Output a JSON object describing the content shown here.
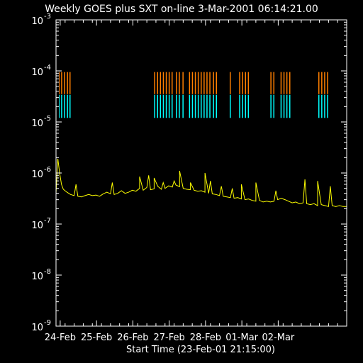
{
  "chart_data": {
    "type": "line",
    "title": "Weekly GOES plus SXT on-line  3-Mar-2001 06:14:21.00",
    "xlabel": "Start Time (23-Feb-01 21:15:00)",
    "ylabel": "",
    "y_scale": "log",
    "ylim": [
      1e-09,
      0.001
    ],
    "xlim_days": [
      0,
      8
    ],
    "background": "#000000",
    "axis_color": "#ffffff",
    "x_ticks": [
      {
        "day": 0.115,
        "label": "24-Feb"
      },
      {
        "day": 1.115,
        "label": "25-Feb"
      },
      {
        "day": 2.115,
        "label": "26-Feb"
      },
      {
        "day": 3.115,
        "label": "27-Feb"
      },
      {
        "day": 4.115,
        "label": "28-Feb"
      },
      {
        "day": 5.115,
        "label": "01-Mar"
      },
      {
        "day": 6.115,
        "label": "02-Mar"
      }
    ],
    "y_ticks": [
      {
        "value": 1e-09,
        "base": "10",
        "exp": "-9"
      },
      {
        "value": 1e-08,
        "base": "10",
        "exp": "-8"
      },
      {
        "value": 1e-07,
        "base": "10",
        "exp": "-7"
      },
      {
        "value": 1e-06,
        "base": "10",
        "exp": "-6"
      },
      {
        "value": 1e-05,
        "base": "10",
        "exp": "-5"
      },
      {
        "value": 0.0001,
        "base": "10",
        "exp": "-4"
      },
      {
        "value": 0.001,
        "base": "10",
        "exp": "-3"
      }
    ],
    "series": [
      {
        "color": "#ffff00",
        "points": [
          [
            0.0,
            4e-07
          ],
          [
            0.05,
            1.9e-06
          ],
          [
            0.1,
            1e-06
          ],
          [
            0.15,
            6e-07
          ],
          [
            0.2,
            4.8e-07
          ],
          [
            0.3,
            4.2e-07
          ],
          [
            0.4,
            3.8e-07
          ],
          [
            0.5,
            3.6e-07
          ],
          [
            0.6,
            3.5e-07
          ],
          [
            0.7,
            3.4e-07
          ],
          [
            0.8,
            3.6e-07
          ],
          [
            0.9,
            3.8e-07
          ],
          [
            1.0,
            3.6e-07
          ],
          [
            1.1,
            3.7e-07
          ],
          [
            1.2,
            3.5e-07
          ],
          [
            1.3,
            3.9e-07
          ],
          [
            1.4,
            4.2e-07
          ],
          [
            1.5,
            3.9e-07
          ],
          [
            1.6,
            3.8e-07
          ],
          [
            1.7,
            4e-07
          ],
          [
            1.8,
            4.5e-07
          ],
          [
            1.9,
            4e-07
          ],
          [
            2.0,
            4.2e-07
          ],
          [
            2.1,
            4.6e-07
          ],
          [
            2.2,
            4.4e-07
          ],
          [
            2.3,
            5e-07
          ],
          [
            2.4,
            4.6e-07
          ],
          [
            2.5,
            5.2e-07
          ],
          [
            2.6,
            4.7e-07
          ],
          [
            2.7,
            4.9e-07
          ],
          [
            2.8,
            5.5e-07
          ],
          [
            2.9,
            4.8e-07
          ],
          [
            3.0,
            5e-07
          ],
          [
            3.1,
            5.6e-07
          ],
          [
            3.2,
            5.3e-07
          ],
          [
            3.3,
            5.8e-07
          ],
          [
            3.4,
            5.4e-07
          ],
          [
            3.5,
            5e-07
          ],
          [
            3.6,
            4.8e-07
          ],
          [
            3.7,
            4.7e-07
          ],
          [
            3.8,
            4.6e-07
          ],
          [
            3.9,
            4.4e-07
          ],
          [
            4.0,
            4.5e-07
          ],
          [
            4.1,
            4.2e-07
          ],
          [
            4.2,
            4e-07
          ],
          [
            4.3,
            3.9e-07
          ],
          [
            4.4,
            3.8e-07
          ],
          [
            4.5,
            3.6e-07
          ],
          [
            4.6,
            3.5e-07
          ],
          [
            4.7,
            3.4e-07
          ],
          [
            4.8,
            3.3e-07
          ],
          [
            4.9,
            3.2e-07
          ],
          [
            5.0,
            3.3e-07
          ],
          [
            5.1,
            3.1e-07
          ],
          [
            5.2,
            3e-07
          ],
          [
            5.3,
            3.1e-07
          ],
          [
            5.4,
            2.9e-07
          ],
          [
            5.5,
            2.8e-07
          ],
          [
            5.6,
            2.9e-07
          ],
          [
            5.7,
            2.7e-07
          ],
          [
            5.8,
            2.8e-07
          ],
          [
            5.9,
            2.7e-07
          ],
          [
            6.0,
            2.8e-07
          ],
          [
            6.1,
            3e-07
          ],
          [
            6.2,
            3.2e-07
          ],
          [
            6.3,
            3e-07
          ],
          [
            6.4,
            2.8e-07
          ],
          [
            6.5,
            2.6e-07
          ],
          [
            6.6,
            2.7e-07
          ],
          [
            6.7,
            2.5e-07
          ],
          [
            6.8,
            2.6e-07
          ],
          [
            6.9,
            2.5e-07
          ],
          [
            7.0,
            2.4e-07
          ],
          [
            7.1,
            2.5e-07
          ],
          [
            7.2,
            2.3e-07
          ],
          [
            7.3,
            2.4e-07
          ],
          [
            7.4,
            2.3e-07
          ],
          [
            7.5,
            2.2e-07
          ],
          [
            7.6,
            2.3e-07
          ],
          [
            7.7,
            2.2e-07
          ],
          [
            7.8,
            2.3e-07
          ],
          [
            7.9,
            2.2e-07
          ],
          [
            8.0,
            2.2e-07
          ]
        ],
        "flares": [
          [
            0.05,
            1.9e-06
          ],
          [
            0.55,
            6e-07
          ],
          [
            1.55,
            6.5e-07
          ],
          [
            2.3,
            8.5e-07
          ],
          [
            2.55,
            9e-07
          ],
          [
            2.7,
            8e-07
          ],
          [
            2.95,
            6.5e-07
          ],
          [
            3.25,
            7e-07
          ],
          [
            3.4,
            1.1e-06
          ],
          [
            3.7,
            6.5e-07
          ],
          [
            4.1,
            1e-06
          ],
          [
            4.25,
            7e-07
          ],
          [
            4.55,
            5.5e-07
          ],
          [
            4.85,
            5e-07
          ],
          [
            5.1,
            6e-07
          ],
          [
            5.5,
            6.5e-07
          ],
          [
            6.05,
            4.5e-07
          ],
          [
            6.85,
            7.5e-07
          ],
          [
            7.2,
            7e-07
          ],
          [
            7.55,
            5.5e-07
          ]
        ]
      }
    ],
    "orange_band": {
      "color": "#ff7f00",
      "y_range": [
        3.5e-05,
        9.5e-05
      ],
      "spans": [
        [
          0.08,
          0.1
        ],
        [
          0.14,
          0.17
        ],
        [
          0.22,
          0.25
        ],
        [
          0.3,
          0.33
        ],
        [
          0.37,
          0.4
        ],
        [
          2.7,
          2.73
        ],
        [
          2.78,
          2.81
        ],
        [
          2.86,
          2.89
        ],
        [
          2.94,
          2.97
        ],
        [
          3.02,
          3.05
        ],
        [
          3.1,
          3.13
        ],
        [
          3.18,
          3.21
        ],
        [
          3.3,
          3.33
        ],
        [
          3.38,
          3.41
        ],
        [
          3.48,
          3.51
        ],
        [
          3.66,
          3.69
        ],
        [
          3.74,
          3.77
        ],
        [
          3.82,
          3.85
        ],
        [
          3.9,
          3.93
        ],
        [
          3.98,
          4.01
        ],
        [
          4.06,
          4.09
        ],
        [
          4.14,
          4.17
        ],
        [
          4.22,
          4.25
        ],
        [
          4.32,
          4.35
        ],
        [
          4.4,
          4.43
        ],
        [
          4.78,
          4.81
        ],
        [
          5.04,
          5.07
        ],
        [
          5.12,
          5.15
        ],
        [
          5.2,
          5.23
        ],
        [
          5.28,
          5.31
        ],
        [
          5.9,
          5.93
        ],
        [
          5.98,
          6.01
        ],
        [
          6.18,
          6.21
        ],
        [
          6.26,
          6.29
        ],
        [
          6.34,
          6.37
        ],
        [
          6.42,
          6.45
        ],
        [
          7.22,
          7.25
        ],
        [
          7.3,
          7.33
        ],
        [
          7.38,
          7.41
        ],
        [
          7.46,
          7.49
        ]
      ]
    },
    "cyan_band": {
      "color": "#00ffff",
      "y_range": [
        1.2e-05,
        3.4e-05
      ],
      "spans": [
        [
          0.08,
          0.1
        ],
        [
          0.14,
          0.17
        ],
        [
          0.22,
          0.25
        ],
        [
          0.3,
          0.33
        ],
        [
          0.37,
          0.4
        ],
        [
          2.7,
          2.73
        ],
        [
          2.78,
          2.81
        ],
        [
          2.86,
          2.89
        ],
        [
          2.94,
          2.97
        ],
        [
          3.02,
          3.05
        ],
        [
          3.1,
          3.13
        ],
        [
          3.18,
          3.21
        ],
        [
          3.3,
          3.33
        ],
        [
          3.38,
          3.41
        ],
        [
          3.48,
          3.51
        ],
        [
          3.66,
          3.69
        ],
        [
          3.74,
          3.77
        ],
        [
          3.82,
          3.85
        ],
        [
          3.9,
          3.93
        ],
        [
          3.98,
          4.01
        ],
        [
          4.06,
          4.09
        ],
        [
          4.14,
          4.17
        ],
        [
          4.22,
          4.25
        ],
        [
          4.32,
          4.35
        ],
        [
          4.4,
          4.43
        ],
        [
          4.78,
          4.81
        ],
        [
          5.04,
          5.07
        ],
        [
          5.12,
          5.15
        ],
        [
          5.2,
          5.23
        ],
        [
          5.28,
          5.31
        ],
        [
          5.9,
          5.93
        ],
        [
          5.98,
          6.01
        ],
        [
          6.18,
          6.21
        ],
        [
          6.26,
          6.29
        ],
        [
          6.34,
          6.37
        ],
        [
          6.42,
          6.45
        ],
        [
          7.22,
          7.25
        ],
        [
          7.3,
          7.33
        ],
        [
          7.38,
          7.41
        ],
        [
          7.46,
          7.49
        ]
      ]
    }
  }
}
